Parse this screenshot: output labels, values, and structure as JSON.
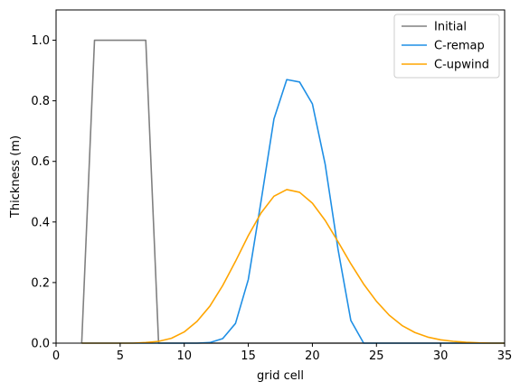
{
  "chart_data": {
    "type": "line",
    "xlabel": "grid cell",
    "ylabel": "Thickness (m)",
    "xlim": [
      0,
      35
    ],
    "ylim": [
      0,
      1.1
    ],
    "xticks": [
      0,
      5,
      10,
      15,
      20,
      25,
      30,
      35
    ],
    "yticks": [
      0.0,
      0.2,
      0.4,
      0.6,
      0.8,
      1.0
    ],
    "xtick_labels": [
      "0",
      "5",
      "10",
      "15",
      "20",
      "25",
      "30",
      "35"
    ],
    "ytick_labels": [
      "0.0",
      "0.2",
      "0.4",
      "0.6",
      "0.8",
      "1.0"
    ],
    "grid": false,
    "legend_position": "top-right",
    "series": [
      {
        "name": "Initial",
        "color": "#808080",
        "x": [
          2,
          3,
          4,
          5,
          6,
          7,
          8,
          9,
          10,
          15,
          20,
          25,
          30,
          35
        ],
        "y": [
          0,
          1.0,
          1.0,
          1.0,
          1.0,
          1.0,
          0,
          0,
          0,
          0,
          0,
          0,
          0,
          0
        ]
      },
      {
        "name": "C-remap",
        "color": "#1f8fe5",
        "x": [
          2,
          3,
          4,
          5,
          6,
          7,
          8,
          9,
          10,
          11,
          12,
          13,
          14,
          15,
          16,
          17,
          18,
          19,
          20,
          21,
          22,
          23,
          24,
          25,
          26,
          27,
          28,
          29,
          30,
          31,
          32,
          33,
          34,
          35
        ],
        "y": [
          0,
          0,
          0,
          0,
          0,
          0,
          0,
          0,
          0,
          0,
          0.002,
          0.015,
          0.065,
          0.21,
          0.47,
          0.74,
          0.87,
          0.862,
          0.79,
          0.59,
          0.31,
          0.075,
          0,
          0,
          0,
          0,
          0,
          0,
          0,
          0,
          0,
          0,
          0,
          0
        ]
      },
      {
        "name": "C-upwind",
        "color": "#ffa500",
        "x": [
          2,
          3,
          4,
          5,
          6,
          7,
          8,
          9,
          10,
          11,
          12,
          13,
          14,
          15,
          16,
          17,
          18,
          19,
          20,
          21,
          22,
          23,
          24,
          25,
          26,
          27,
          28,
          29,
          30,
          31,
          32,
          33,
          34,
          35
        ],
        "y": [
          0,
          0,
          0,
          0,
          0,
          0.002,
          0.006,
          0.016,
          0.037,
          0.072,
          0.122,
          0.19,
          0.27,
          0.355,
          0.43,
          0.485,
          0.507,
          0.498,
          0.462,
          0.405,
          0.335,
          0.262,
          0.195,
          0.138,
          0.092,
          0.058,
          0.035,
          0.02,
          0.011,
          0.006,
          0.003,
          0.001,
          0,
          0
        ]
      }
    ]
  }
}
